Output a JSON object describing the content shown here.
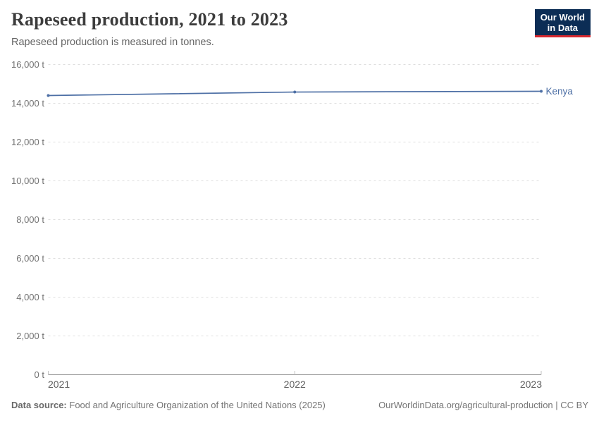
{
  "header": {
    "title": "Rapeseed production, 2021 to 2023",
    "subtitle": "Rapeseed production is measured in tonnes.",
    "logo": {
      "line1": "Our World",
      "line2": "in Data"
    }
  },
  "colors": {
    "series_blue": "#4d6fa5",
    "logo_bg": "#0c2d55",
    "logo_red": "#d7282f",
    "grid": "#dedede",
    "axis": "#999999",
    "axis_tick": "#c2c2c2",
    "y_tick_text": "#737373",
    "x_tick_text": "#5e5e5e",
    "title_text": "#3c3c3c",
    "subtitle_text": "#666666",
    "footer_text": "#757575"
  },
  "chart_data": {
    "type": "line",
    "title": "Rapeseed production, 2021 to 2023",
    "subtitle": "Rapeseed production is measured in tonnes.",
    "xlabel": "",
    "ylabel": "",
    "unit": "t",
    "x": [
      2021,
      2022,
      2023
    ],
    "series": [
      {
        "name": "Kenya",
        "color": "#4d6fa5",
        "values": [
          14400,
          14580,
          14620
        ]
      }
    ],
    "xlim": [
      2021,
      2023
    ],
    "ylim": [
      0,
      16000
    ],
    "grid": "horizontal-dashed",
    "legend": "entity-label-right-of-line",
    "y_ticks": [
      {
        "value": 0,
        "label": "0 t"
      },
      {
        "value": 2000,
        "label": "2,000 t"
      },
      {
        "value": 4000,
        "label": "4,000 t"
      },
      {
        "value": 6000,
        "label": "6,000 t"
      },
      {
        "value": 8000,
        "label": "8,000 t"
      },
      {
        "value": 10000,
        "label": "10,000 t"
      },
      {
        "value": 12000,
        "label": "12,000 t"
      },
      {
        "value": 14000,
        "label": "14,000 t"
      },
      {
        "value": 16000,
        "label": "16,000 t"
      }
    ],
    "x_ticks": [
      {
        "value": 2021,
        "label": "2021"
      },
      {
        "value": 2022,
        "label": "2022"
      },
      {
        "value": 2023,
        "label": "2023"
      }
    ]
  },
  "footer": {
    "source_label": "Data source:",
    "source_text": "Food and Agriculture Organization of the United Nations (2025)",
    "link_text": "OurWorldinData.org/agricultural-production | CC BY"
  }
}
